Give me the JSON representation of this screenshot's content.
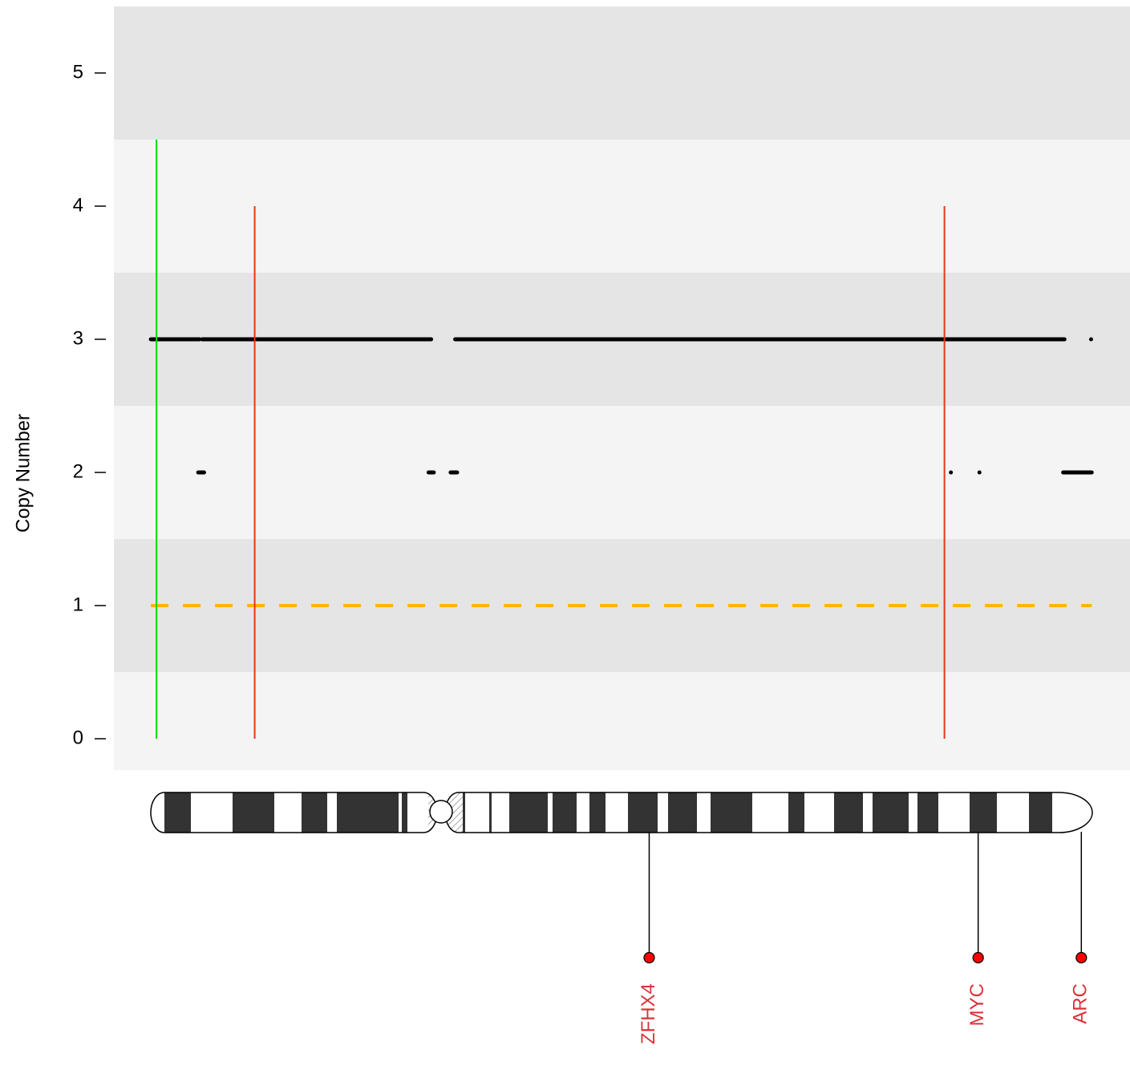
{
  "chart_data": {
    "type": "copy-number",
    "ylabel": "Copy Number",
    "xlim": [
      -5.7,
      150.9
    ],
    "ylim": [
      -0.235,
      5.5
    ],
    "yticks": [
      0,
      1,
      2,
      3,
      4,
      5
    ],
    "segments": [
      {
        "x": [
          0,
          7.5
        ],
        "y": 3
      },
      {
        "x": [
          7.9,
          43.2
        ],
        "y": 3
      },
      {
        "x": [
          46.9,
          140.8
        ],
        "y": 3
      },
      {
        "x": [
          7.3,
          8.2
        ],
        "y": 2
      },
      {
        "x": [
          42.8,
          43.6
        ],
        "y": 2
      },
      {
        "x": [
          46.2,
          47.2
        ],
        "y": 2
      },
      {
        "x": [
          140.6,
          145.0
        ],
        "y": 2
      }
    ],
    "points": [
      {
        "x": 144.9,
        "y": 3
      },
      {
        "x": 123.3,
        "y": 2
      },
      {
        "x": 127.7,
        "y": 2
      }
    ],
    "baseline": {
      "x": [
        0,
        145
      ],
      "y": 1,
      "color": "#ffb400"
    },
    "vlines": [
      {
        "x": 0.86,
        "top": 4.5,
        "color": "#00dd00"
      },
      {
        "x": 16.0,
        "top": 4,
        "color": "#e8341c"
      },
      {
        "x": 122.3,
        "top": 4,
        "color": "#e8341c"
      }
    ],
    "genes": [
      {
        "name": "ZFHX4",
        "x": 76.8
      },
      {
        "name": "MYC",
        "x": 127.5
      },
      {
        "name": "ARC",
        "x": 143.4
      }
    ],
    "gene_color": "#d9323a"
  }
}
